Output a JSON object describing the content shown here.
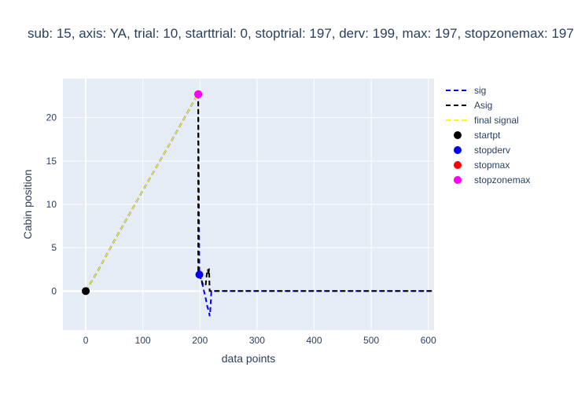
{
  "chart_data": {
    "type": "line",
    "title": "sub: 15, axis: YA, trial: 10, starttrial: 0, stoptrial: 197, derv: 199, max: 197, stopzonemax: 197",
    "xlabel": "data points",
    "ylabel": "Cabin position",
    "xlim": [
      -40,
      610
    ],
    "ylim": [
      -4.5,
      24.5
    ],
    "xticks": [
      0,
      100,
      200,
      300,
      400,
      500,
      600
    ],
    "yticks": [
      0,
      5,
      10,
      15,
      20
    ],
    "grid": true,
    "legend_position": "right",
    "series": [
      {
        "name": "sig",
        "color": "#0000ff",
        "dash": "dash",
        "x": [
          0,
          20,
          50,
          100,
          150,
          197,
          199,
          205,
          210,
          213,
          216,
          217,
          218,
          219,
          220,
          610
        ],
        "y": [
          0,
          2.2,
          5.8,
          11.6,
          17.3,
          22.8,
          2.0,
          0.6,
          -0.8,
          -1.8,
          -2.4,
          -2.9,
          -2.4,
          -1.2,
          0,
          0
        ]
      },
      {
        "name": "Asig",
        "color": "#000000",
        "dash": "dash",
        "x": [
          197,
          197,
          199,
          205,
          210,
          212,
          214,
          215,
          216,
          217,
          219,
          610
        ],
        "y": [
          22.8,
          2.0,
          2.0,
          0.8,
          0.6,
          2.0,
          2.5,
          1.9,
          2.6,
          0,
          0,
          0
        ]
      },
      {
        "name": "final signal",
        "color": "#ffff00",
        "dash": "dash",
        "x": [
          0,
          20,
          50,
          100,
          150,
          197
        ],
        "y": [
          0,
          2.2,
          5.8,
          11.6,
          17.3,
          22.8
        ]
      },
      {
        "name": "startpt",
        "type": "marker",
        "color": "#000000",
        "x": [
          0
        ],
        "y": [
          0
        ]
      },
      {
        "name": "stopderv",
        "type": "marker",
        "color": "#0000ff",
        "x": [
          199
        ],
        "y": [
          1.9
        ]
      },
      {
        "name": "stopmax",
        "type": "marker",
        "color": "#ff0000",
        "x": [
          197
        ],
        "y": [
          22.7
        ]
      },
      {
        "name": "stopzonemax",
        "type": "marker",
        "color": "#ff00ff",
        "x": [
          197
        ],
        "y": [
          22.7
        ]
      }
    ]
  }
}
